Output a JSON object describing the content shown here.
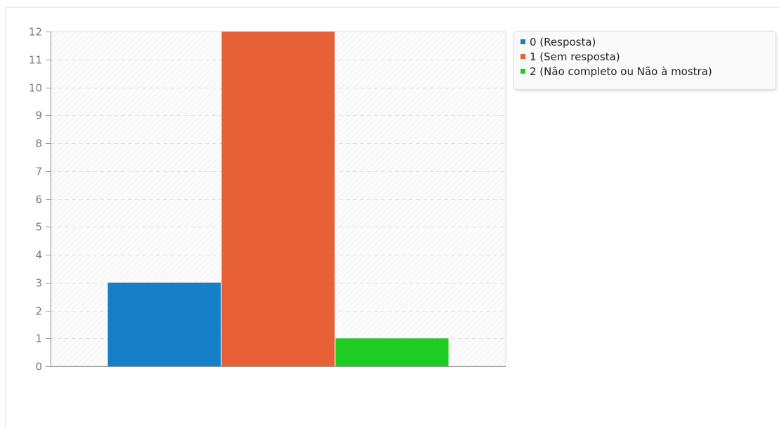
{
  "chart_data": {
    "type": "bar",
    "categories": [
      "0 (Resposta)",
      "1 (Sem resposta)",
      "2 (Não completo ou Não à mostra)"
    ],
    "values": [
      3,
      12,
      1
    ],
    "colors": [
      "#1580c8",
      "#e86035",
      "#1fcc24"
    ],
    "ylim": [
      0,
      12
    ],
    "yticks": [
      "0",
      "1",
      "2",
      "3",
      "4",
      "5",
      "6",
      "7",
      "8",
      "9",
      "10",
      "11",
      "12"
    ],
    "grid": true,
    "legend_position": "top-right",
    "title": "",
    "xlabel": "",
    "ylabel": ""
  },
  "legend": {
    "items": [
      {
        "label": "0 (Resposta)",
        "color": "#1580c8"
      },
      {
        "label": "1 (Sem resposta)",
        "color": "#e86035"
      },
      {
        "label": "2 (Não completo ou Não à mostra)",
        "color": "#1fcc24"
      }
    ]
  }
}
